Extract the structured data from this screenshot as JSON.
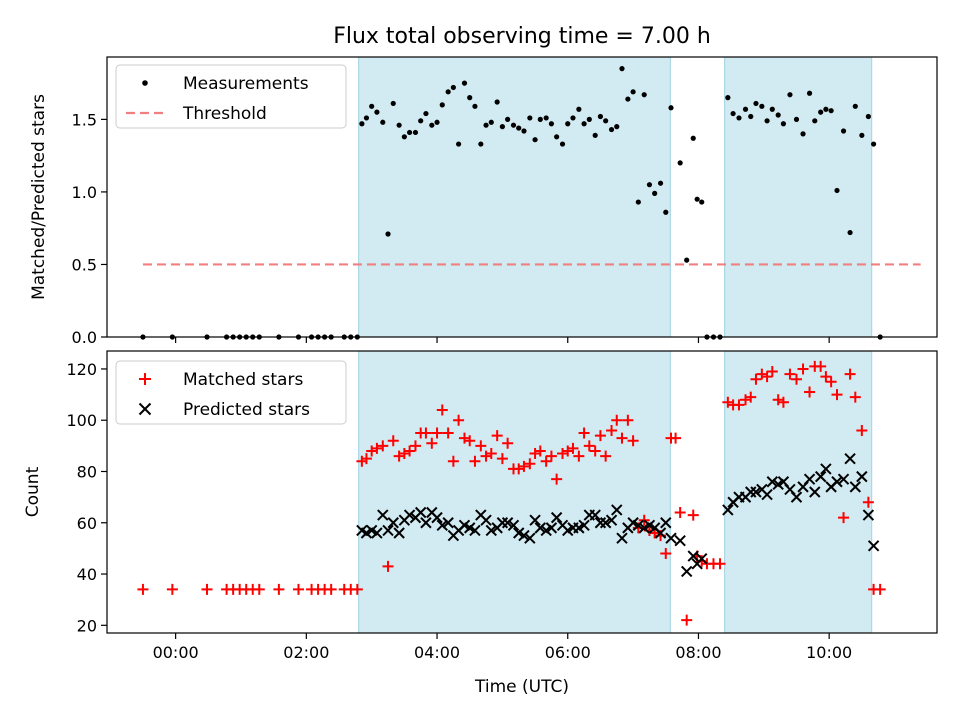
{
  "figure": {
    "title": "Flux total observing time = 7.00 h"
  },
  "colors": {
    "shade": "#add8e6",
    "measurement": "#000000",
    "threshold": "#f08080",
    "matched": "#ff0000",
    "predicted": "#000000"
  },
  "chart_data": [
    {
      "type": "scatter",
      "ylabel": "Matched/Predicted stars",
      "xlim_hours": [
        -1.05,
        11.65
      ],
      "ylim": [
        0,
        1.93
      ],
      "yticks": [
        0.0,
        0.5,
        1.0,
        1.5
      ],
      "ytick_labels": [
        "0.0",
        "0.5",
        "1.0",
        "1.5"
      ],
      "legend_position": "top-left",
      "shaded_intervals_hours": [
        [
          2.8,
          7.57
        ],
        [
          8.4,
          10.65
        ]
      ],
      "threshold": {
        "name": "Threshold",
        "value": 0.5,
        "x_range_hours": [
          -0.5,
          11.4
        ]
      },
      "series": [
        {
          "name": "Measurements",
          "marker": "dot",
          "x_hours": [
            -0.5,
            -0.05,
            0.48,
            0.78,
            0.88,
            0.98,
            1.08,
            1.18,
            1.28,
            1.58,
            1.88,
            2.08,
            2.18,
            2.28,
            2.38,
            2.58,
            2.68,
            2.78,
            2.85,
            2.92,
            3.0,
            3.08,
            3.17,
            3.25,
            3.33,
            3.42,
            3.5,
            3.58,
            3.67,
            3.75,
            3.83,
            3.92,
            4.0,
            4.08,
            4.17,
            4.25,
            4.33,
            4.42,
            4.5,
            4.58,
            4.67,
            4.75,
            4.83,
            4.92,
            5.0,
            5.08,
            5.17,
            5.25,
            5.33,
            5.42,
            5.5,
            5.58,
            5.67,
            5.75,
            5.83,
            5.92,
            6.0,
            6.08,
            6.17,
            6.25,
            6.33,
            6.42,
            6.5,
            6.58,
            6.67,
            6.75,
            6.83,
            6.92,
            7.0,
            7.08,
            7.17,
            7.25,
            7.33,
            7.42,
            7.5,
            7.58,
            7.72,
            7.82,
            7.92,
            7.98,
            8.05,
            8.13,
            8.23,
            8.33,
            8.45,
            8.53,
            8.62,
            8.72,
            8.8,
            8.88,
            8.97,
            9.05,
            9.13,
            9.22,
            9.3,
            9.4,
            9.5,
            9.6,
            9.7,
            9.78,
            9.87,
            9.95,
            10.03,
            10.12,
            10.22,
            10.32,
            10.4,
            10.5,
            10.6,
            10.68,
            10.78
          ],
          "y": [
            0,
            0,
            0,
            0,
            0,
            0,
            0,
            0,
            0,
            0,
            0,
            0,
            0,
            0,
            0,
            0,
            0,
            0,
            1.47,
            1.51,
            1.59,
            1.55,
            1.48,
            0.71,
            1.61,
            1.46,
            1.38,
            1.41,
            1.41,
            1.49,
            1.54,
            1.46,
            1.48,
            1.6,
            1.69,
            1.72,
            1.33,
            1.75,
            1.65,
            1.59,
            1.33,
            1.46,
            1.48,
            1.62,
            1.45,
            1.5,
            1.46,
            1.44,
            1.42,
            1.51,
            1.36,
            1.5,
            1.51,
            1.47,
            1.38,
            1.33,
            1.47,
            1.51,
            1.57,
            1.47,
            1.5,
            1.39,
            1.52,
            1.49,
            1.43,
            1.45,
            1.85,
            1.64,
            1.69,
            0.93,
            1.67,
            1.05,
            0.99,
            1.06,
            0.86,
            1.58,
            1.2,
            0.53,
            1.37,
            0.95,
            0.93,
            0,
            0,
            0,
            1.65,
            1.54,
            1.51,
            1.57,
            1.52,
            1.61,
            1.59,
            1.49,
            1.57,
            1.53,
            1.47,
            1.67,
            1.5,
            1.4,
            1.68,
            1.49,
            1.55,
            1.57,
            1.56,
            1.01,
            1.42,
            0.72,
            1.59,
            1.39,
            1.52,
            1.33,
            0
          ]
        }
      ]
    },
    {
      "type": "scatter",
      "xlabel": "Time (UTC)",
      "ylabel": "Count",
      "xlim_hours": [
        -1.05,
        11.65
      ],
      "ylim": [
        17,
        127
      ],
      "yticks": [
        20,
        40,
        60,
        80,
        100,
        120
      ],
      "ytick_labels": [
        "20",
        "40",
        "60",
        "80",
        "100",
        "120"
      ],
      "xticks_hours": [
        0,
        2,
        4,
        6,
        8,
        10
      ],
      "xtick_labels": [
        "00:00",
        "02:00",
        "04:00",
        "06:00",
        "08:00",
        "10:00"
      ],
      "legend_position": "top-left",
      "shaded_intervals_hours": [
        [
          2.8,
          7.57
        ],
        [
          8.4,
          10.65
        ]
      ],
      "series": [
        {
          "name": "Matched stars",
          "marker": "plus",
          "x_hours": [
            -0.5,
            -0.05,
            0.48,
            0.78,
            0.88,
            0.98,
            1.08,
            1.18,
            1.28,
            1.58,
            1.88,
            2.08,
            2.18,
            2.28,
            2.38,
            2.58,
            2.68,
            2.78,
            2.85,
            2.92,
            3.0,
            3.08,
            3.17,
            3.25,
            3.33,
            3.42,
            3.5,
            3.58,
            3.67,
            3.75,
            3.83,
            3.92,
            4.0,
            4.08,
            4.17,
            4.25,
            4.33,
            4.42,
            4.5,
            4.58,
            4.67,
            4.75,
            4.83,
            4.92,
            5.0,
            5.08,
            5.17,
            5.25,
            5.33,
            5.42,
            5.5,
            5.58,
            5.67,
            5.75,
            5.83,
            5.92,
            6.0,
            6.08,
            6.17,
            6.25,
            6.33,
            6.42,
            6.5,
            6.58,
            6.67,
            6.75,
            6.83,
            6.92,
            7.0,
            7.08,
            7.17,
            7.25,
            7.33,
            7.42,
            7.5,
            7.58,
            7.65,
            7.72,
            7.82,
            7.92,
            7.98,
            8.05,
            8.13,
            8.23,
            8.33,
            8.45,
            8.53,
            8.62,
            8.72,
            8.8,
            8.88,
            8.97,
            9.05,
            9.13,
            9.22,
            9.3,
            9.4,
            9.5,
            9.6,
            9.7,
            9.78,
            9.87,
            9.95,
            10.03,
            10.12,
            10.22,
            10.32,
            10.4,
            10.5,
            10.6,
            10.68,
            10.78
          ],
          "y": [
            34,
            34,
            34,
            34,
            34,
            34,
            34,
            34,
            34,
            34,
            34,
            34,
            34,
            34,
            34,
            34,
            34,
            34,
            84,
            85,
            88,
            89,
            90,
            43,
            92,
            86,
            87,
            88,
            90,
            95,
            95,
            91,
            95,
            104,
            95,
            84,
            100,
            93,
            92,
            84,
            90,
            86,
            87,
            94,
            85,
            91,
            81,
            81,
            82,
            83,
            87,
            88,
            84,
            86,
            77,
            87,
            88,
            89,
            86,
            95,
            90,
            88,
            94,
            86,
            96,
            100,
            93,
            100,
            92,
            58,
            61,
            57,
            56,
            55,
            48,
            93,
            93,
            64,
            22,
            63,
            47,
            45,
            44,
            44,
            44,
            107,
            106,
            106,
            108,
            109,
            116,
            118,
            117,
            119,
            108,
            107,
            118,
            116,
            120,
            111,
            121,
            121,
            117,
            115,
            110,
            62,
            118,
            109,
            96,
            68,
            34,
            34
          ]
        },
        {
          "name": "Predicted stars",
          "marker": "x",
          "x_hours": [
            2.85,
            2.92,
            3.0,
            3.08,
            3.17,
            3.25,
            3.33,
            3.42,
            3.5,
            3.58,
            3.67,
            3.75,
            3.83,
            3.92,
            4.0,
            4.08,
            4.17,
            4.25,
            4.33,
            4.42,
            4.5,
            4.58,
            4.67,
            4.75,
            4.83,
            4.92,
            5.0,
            5.08,
            5.17,
            5.25,
            5.33,
            5.42,
            5.5,
            5.58,
            5.67,
            5.75,
            5.83,
            5.92,
            6.0,
            6.08,
            6.17,
            6.25,
            6.33,
            6.42,
            6.5,
            6.58,
            6.67,
            6.75,
            6.83,
            6.92,
            7.0,
            7.08,
            7.17,
            7.25,
            7.33,
            7.42,
            7.5,
            7.58,
            7.72,
            7.82,
            7.92,
            7.98,
            8.05,
            8.45,
            8.53,
            8.62,
            8.72,
            8.8,
            8.88,
            8.97,
            9.05,
            9.13,
            9.22,
            9.3,
            9.4,
            9.5,
            9.6,
            9.7,
            9.78,
            9.87,
            9.95,
            10.03,
            10.12,
            10.22,
            10.32,
            10.4,
            10.5,
            10.6,
            10.68
          ],
          "y": [
            57,
            56,
            57,
            56,
            63,
            57,
            60,
            56,
            61,
            63,
            62,
            64,
            60,
            64,
            62,
            59,
            60,
            55,
            57,
            59,
            58,
            57,
            63,
            61,
            57,
            58,
            60,
            60,
            59,
            56,
            55,
            54,
            61,
            58,
            57,
            58,
            62,
            59,
            57,
            58,
            58,
            59,
            63,
            63,
            60,
            60,
            61,
            65,
            54,
            58,
            60,
            59,
            58,
            59,
            58,
            56,
            60,
            54,
            53,
            41,
            47,
            44,
            46,
            65,
            68,
            70,
            70,
            72,
            72,
            73,
            71,
            76,
            75,
            76,
            73,
            70,
            74,
            77,
            72,
            78,
            81,
            74,
            76,
            77,
            85,
            74,
            78,
            63,
            51
          ]
        }
      ]
    }
  ]
}
